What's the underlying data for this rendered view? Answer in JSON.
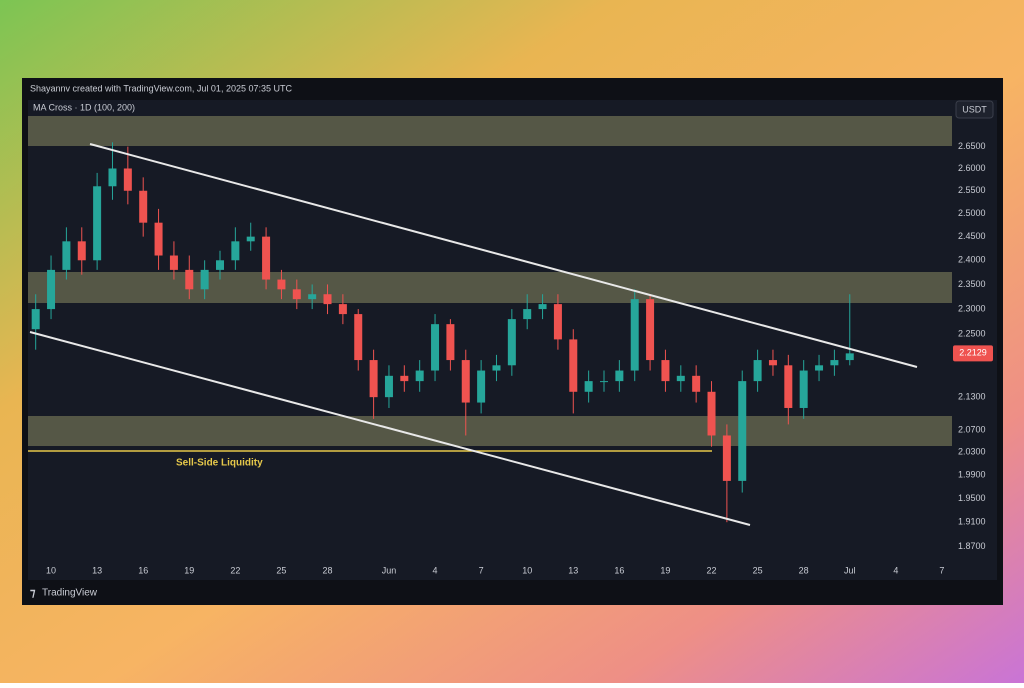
{
  "chart_data": {
    "type": "candlestick",
    "header": "Shayannv created with TradingView.com, Jul 01, 2025 07:35 UTC",
    "indicator": "MA Cross · 1D (100, 200)",
    "currency": "USDT",
    "annotation": "Sell-Side Liquidity",
    "brand": "TradingView",
    "categories": [
      null,
      "10",
      null,
      null,
      "13",
      null,
      null,
      "16",
      null,
      null,
      "19",
      null,
      null,
      "22",
      null,
      null,
      "25",
      null,
      null,
      "28",
      null,
      null,
      null,
      "Jun",
      null,
      null,
      "4",
      null,
      null,
      "7",
      null,
      null,
      "10",
      null,
      null,
      "13",
      null,
      null,
      "16",
      null,
      null,
      "19",
      null,
      null,
      "22",
      null,
      null,
      "25",
      null,
      null,
      "28",
      null,
      null,
      "Jul",
      null,
      null,
      "4",
      null,
      null,
      "7"
    ],
    "open": [
      2.26,
      2.3,
      2.38,
      2.44,
      2.4,
      2.56,
      2.6,
      2.55,
      2.48,
      2.41,
      2.38,
      2.34,
      2.38,
      2.4,
      2.44,
      2.45,
      2.36,
      2.34,
      2.32,
      2.33,
      2.31,
      2.29,
      2.2,
      2.13,
      2.17,
      2.16,
      2.18,
      2.27,
      2.2,
      2.12,
      2.18,
      2.19,
      2.28,
      2.3,
      2.31,
      2.24,
      2.14,
      2.16,
      2.16,
      2.18,
      2.32,
      2.2,
      2.16,
      2.17,
      2.14,
      2.06,
      1.98,
      2.16,
      2.2,
      2.19,
      2.11,
      2.18,
      2.19,
      2.2,
      null,
      null,
      null,
      null,
      null,
      null
    ],
    "high": [
      2.33,
      2.41,
      2.47,
      2.47,
      2.59,
      2.66,
      2.65,
      2.58,
      2.51,
      2.44,
      2.41,
      2.4,
      2.42,
      2.47,
      2.48,
      2.47,
      2.38,
      2.36,
      2.35,
      2.35,
      2.33,
      2.3,
      2.22,
      2.19,
      2.19,
      2.2,
      2.29,
      2.28,
      2.22,
      2.2,
      2.21,
      2.3,
      2.33,
      2.33,
      2.33,
      2.26,
      2.18,
      2.18,
      2.2,
      2.34,
      2.33,
      2.22,
      2.19,
      2.19,
      2.16,
      2.08,
      2.18,
      2.22,
      2.22,
      2.21,
      2.2,
      2.21,
      2.22,
      2.33,
      null,
      null,
      null,
      null,
      null,
      null
    ],
    "low": [
      2.22,
      2.28,
      2.36,
      2.37,
      2.38,
      2.53,
      2.52,
      2.45,
      2.38,
      2.36,
      2.32,
      2.32,
      2.36,
      2.38,
      2.42,
      2.34,
      2.32,
      2.3,
      2.3,
      2.29,
      2.27,
      2.18,
      2.09,
      2.11,
      2.14,
      2.14,
      2.16,
      2.18,
      2.06,
      2.1,
      2.16,
      2.17,
      2.26,
      2.28,
      2.22,
      2.1,
      2.12,
      2.14,
      2.14,
      2.16,
      2.18,
      2.14,
      2.14,
      2.12,
      2.04,
      1.91,
      1.96,
      2.14,
      2.17,
      2.08,
      2.09,
      2.16,
      2.17,
      2.19,
      null,
      null,
      null,
      null,
      null,
      null
    ],
    "close": [
      2.3,
      2.38,
      2.44,
      2.4,
      2.56,
      2.6,
      2.55,
      2.48,
      2.41,
      2.38,
      2.34,
      2.38,
      2.4,
      2.44,
      2.45,
      2.36,
      2.34,
      2.32,
      2.33,
      2.31,
      2.29,
      2.2,
      2.13,
      2.17,
      2.16,
      2.18,
      2.27,
      2.2,
      2.12,
      2.18,
      2.19,
      2.28,
      2.3,
      2.31,
      2.24,
      2.14,
      2.16,
      2.16,
      2.18,
      2.32,
      2.2,
      2.16,
      2.17,
      2.14,
      2.06,
      1.98,
      2.16,
      2.2,
      2.19,
      2.11,
      2.18,
      2.19,
      2.2,
      2.2129,
      null,
      null,
      null,
      null,
      null,
      null
    ],
    "last_price": 2.2129,
    "up_color": "#26a69a",
    "down_color": "#ef5350",
    "log_scale": true,
    "ylim": [
      1.84,
      2.76
    ],
    "yticks": [
      {
        "value": 1.87,
        "label": "1.8700"
      },
      {
        "value": 1.91,
        "label": "1.9100"
      },
      {
        "value": 1.95,
        "label": "1.9500"
      },
      {
        "value": 1.99,
        "label": "1.9900"
      },
      {
        "value": 2.03,
        "label": "2.0300"
      },
      {
        "value": 2.07,
        "label": "2.0700"
      },
      {
        "value": 2.13,
        "label": "2.1300"
      },
      {
        "value": 2.25,
        "label": "2.2500"
      },
      {
        "value": 2.3,
        "label": "2.3000"
      },
      {
        "value": 2.35,
        "label": "2.3500"
      },
      {
        "value": 2.4,
        "label": "2.4000"
      },
      {
        "value": 2.45,
        "label": "2.4500"
      },
      {
        "value": 2.5,
        "label": "2.5000"
      },
      {
        "value": 2.55,
        "label": "2.5500"
      },
      {
        "value": 2.6,
        "label": "2.6000"
      },
      {
        "value": 2.65,
        "label": "2.6500"
      }
    ],
    "grid": false
  }
}
